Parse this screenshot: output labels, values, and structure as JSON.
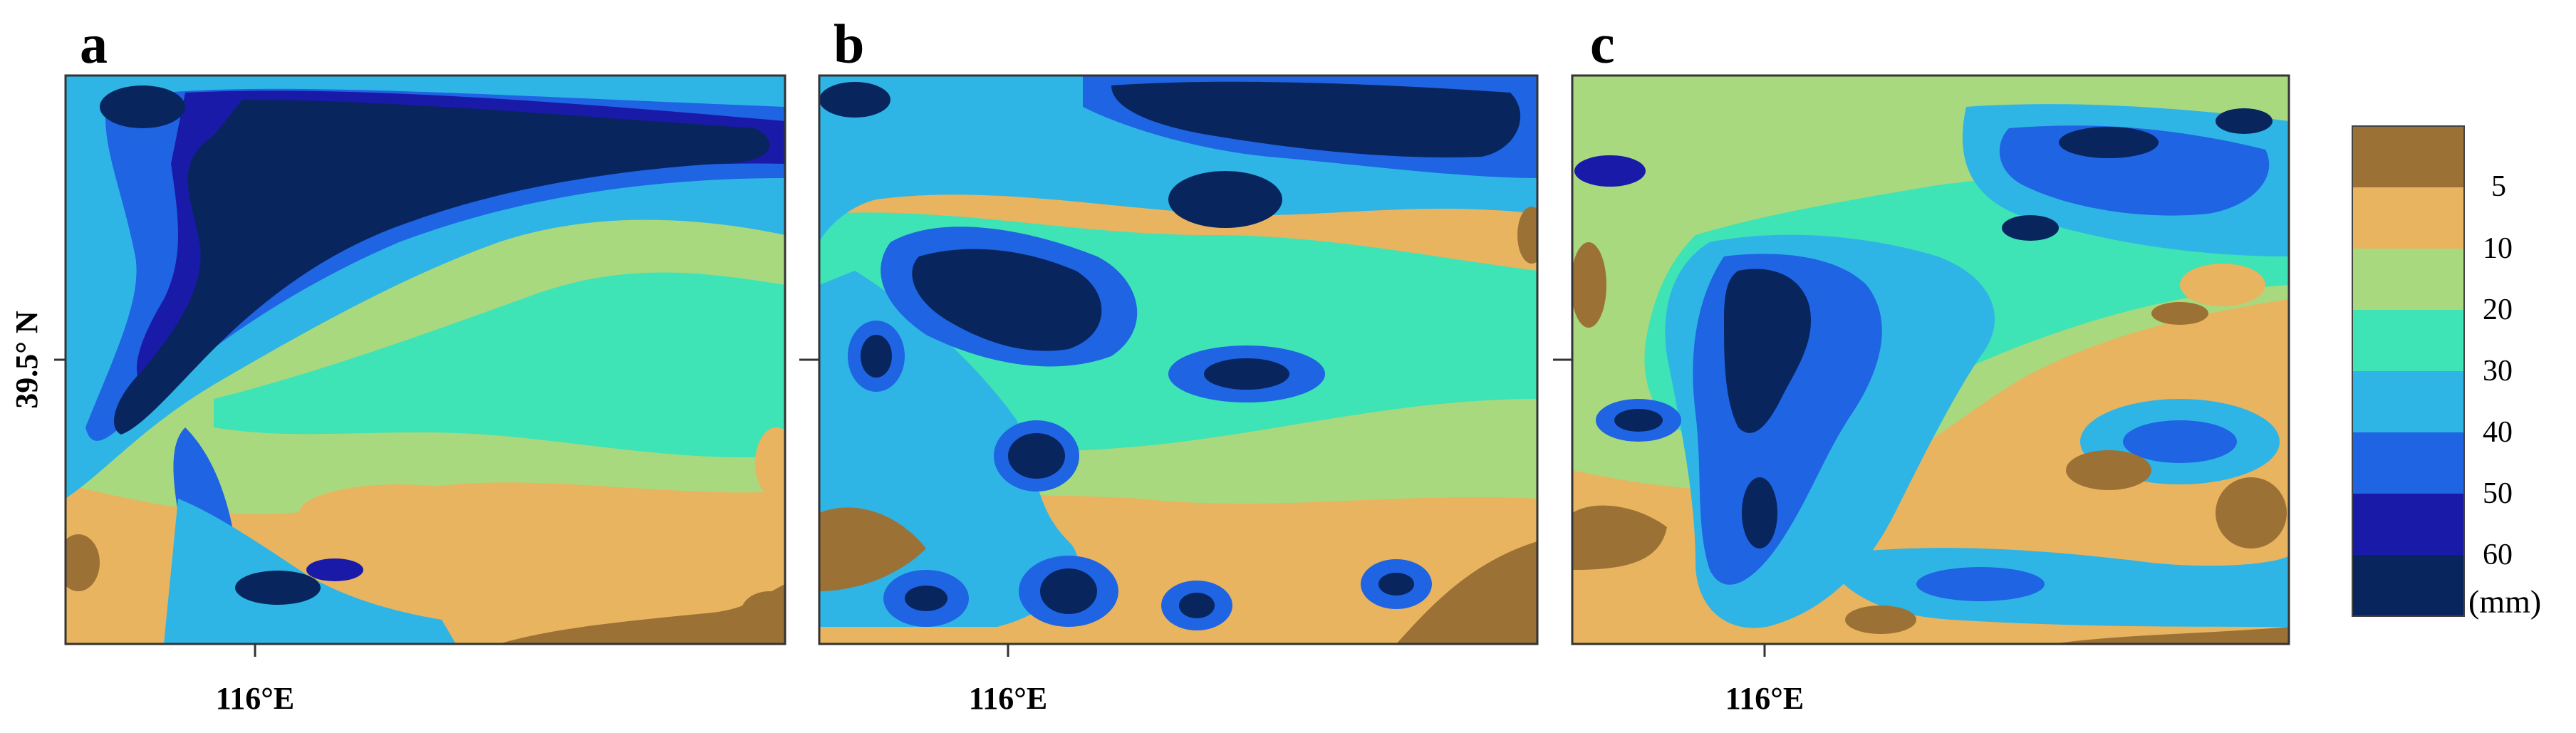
{
  "figure": {
    "panels": [
      {
        "id": "a",
        "label": "a",
        "lat_label": "39.5° N",
        "lon_label": "116°E"
      },
      {
        "id": "b",
        "label": "b",
        "lat_label": "",
        "lon_label": "116°E"
      },
      {
        "id": "c",
        "label": "c",
        "lat_label": "",
        "lon_label": "116°E"
      }
    ],
    "colorbar": {
      "unit": "(mm)",
      "ticks": [
        "5",
        "10",
        "20",
        "30",
        "40",
        "50",
        "60"
      ],
      "colors": [
        "#9c7136",
        "#e8b45f",
        "#a8d97f",
        "#3ee3b6",
        "#2eb5e6",
        "#1f64e2",
        "#1a1aa8",
        "#08255e"
      ]
    }
  }
}
